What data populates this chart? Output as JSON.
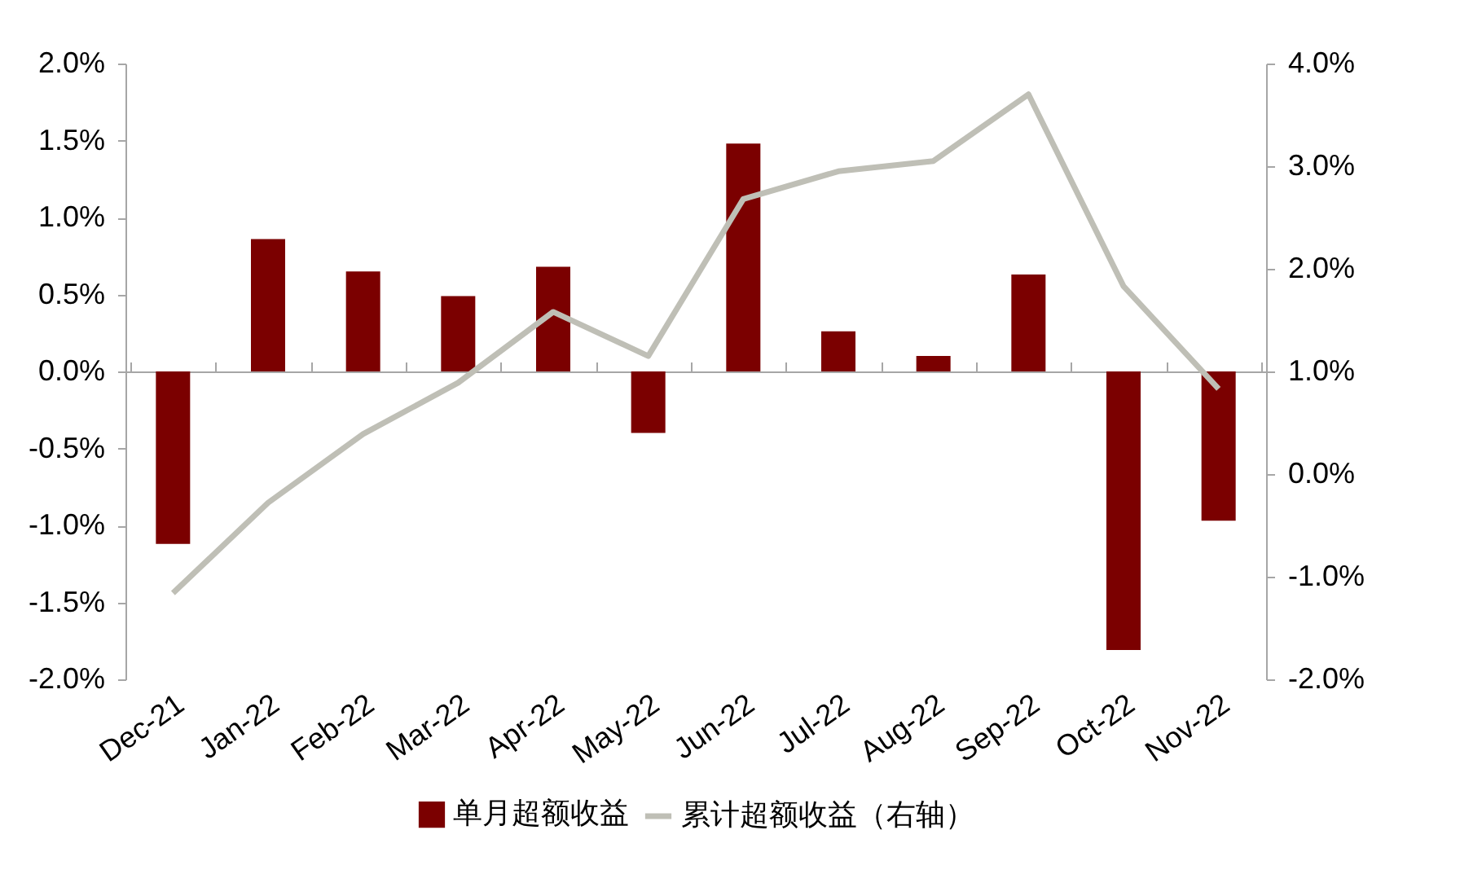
{
  "chart_data": {
    "type": "bar",
    "categories": [
      "Dec-21",
      "Jan-22",
      "Feb-22",
      "Mar-22",
      "Apr-22",
      "May-22",
      "Jun-22",
      "Jul-22",
      "Aug-22",
      "Sep-22",
      "Oct-22",
      "Nov-22"
    ],
    "series": [
      {
        "name": "单月超额收益",
        "color": "#7b0000",
        "values": [
          -1.12,
          0.86,
          0.65,
          0.49,
          0.68,
          -0.4,
          1.48,
          0.26,
          0.1,
          0.63,
          -1.81,
          -0.97
        ]
      },
      {
        "name": "累计超额收益（右轴）",
        "type": "line",
        "axis": "y2",
        "color": "#bfbfb6",
        "values": [
          -1.16,
          -0.28,
          0.39,
          0.89,
          1.58,
          1.15,
          2.68,
          2.95,
          3.05,
          3.7,
          1.83,
          0.83
        ]
      }
    ],
    "ylim": [
      -2,
      2
    ],
    "yticks": [
      {
        "value": -2,
        "label": "-2.0%"
      },
      {
        "value": -1.5,
        "label": "-1.5%"
      },
      {
        "value": -1,
        "label": "-1.0%"
      },
      {
        "value": -0.5,
        "label": "-0.5%"
      },
      {
        "value": 0,
        "label": "0.0%"
      },
      {
        "value": 0.5,
        "label": "0.5%"
      },
      {
        "value": 1,
        "label": "1.0%"
      },
      {
        "value": 1.5,
        "label": "1.5%"
      },
      {
        "value": 2,
        "label": "2.0%"
      }
    ],
    "y2lim": [
      -2,
      4
    ],
    "y2ticks": [
      {
        "value": -2,
        "label": "-2.0%"
      },
      {
        "value": -1,
        "label": "-1.0%"
      },
      {
        "value": 0,
        "label": "0.0%"
      },
      {
        "value": 1,
        "label": "1.0%"
      },
      {
        "value": 2,
        "label": "2.0%"
      },
      {
        "value": 3,
        "label": "3.0%"
      },
      {
        "value": 4,
        "label": "4.0%"
      }
    ],
    "legend": "bottom",
    "marker": "none",
    "line_style": "solid"
  }
}
